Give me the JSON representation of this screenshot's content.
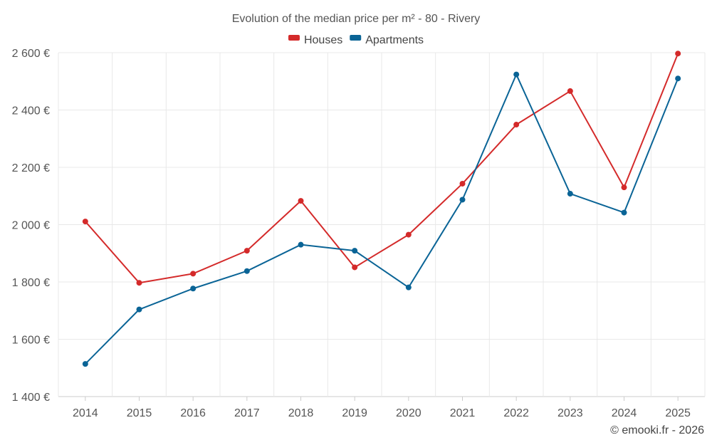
{
  "chart_data": {
    "type": "line",
    "title": "Evolution of the median price per m² - 80 - Rivery",
    "categories": [
      "2014",
      "2015",
      "2016",
      "2017",
      "2018",
      "2019",
      "2020",
      "2021",
      "2022",
      "2023",
      "2024",
      "2025"
    ],
    "series": [
      {
        "name": "Houses",
        "color": "#d42a2a",
        "values": [
          2011,
          1797,
          1829,
          1909,
          2083,
          1851,
          1965,
          2143,
          2349,
          2466,
          2130,
          2597
        ]
      },
      {
        "name": "Apartments",
        "color": "#0a6496",
        "values": [
          1514,
          1704,
          1777,
          1838,
          1930,
          1909,
          1781,
          2087,
          2524,
          2108,
          2042,
          2510
        ]
      }
    ],
    "y_ticks": [
      "1 400 €",
      "1 600 €",
      "1 800 €",
      "2 000 €",
      "2 200 €",
      "2 400 €",
      "2 600 €"
    ],
    "y_tick_values": [
      1400,
      1600,
      1800,
      2000,
      2200,
      2400,
      2600
    ],
    "ylim": [
      1400,
      2600
    ],
    "xlabel": "",
    "ylabel": "",
    "grid": true,
    "legend_position": "top-center",
    "credit": "© emooki.fr - 2026"
  }
}
